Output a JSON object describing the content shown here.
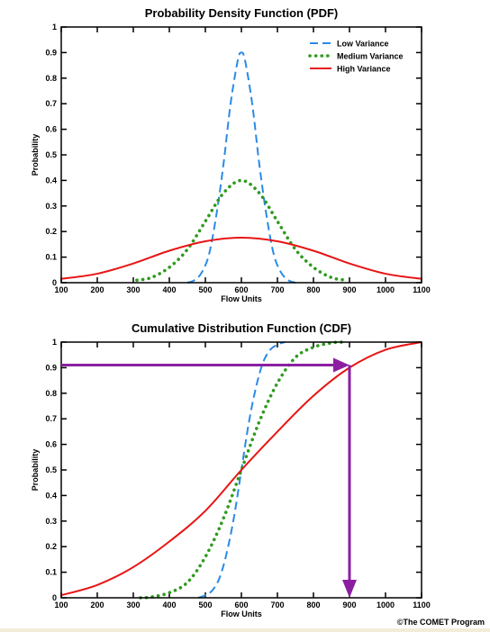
{
  "credit": "©The COMET Program",
  "colors": {
    "low": "#2a8ae8",
    "medium": "#2f9a1f",
    "high": "#e81414",
    "arrow": "#8b1fa0"
  },
  "chart_data": [
    {
      "type": "line",
      "title": "Probability Density Function (PDF)",
      "xlabel": "Flow Units",
      "ylabel": "Probability",
      "xlim": [
        100,
        1100
      ],
      "ylim": [
        0,
        1
      ],
      "xticks": [
        "100",
        "200",
        "300",
        "400",
        "500",
        "600",
        "700",
        "800",
        "900",
        "1000",
        "1100"
      ],
      "yticks": [
        "0",
        "0.1",
        "0.2",
        "0.3",
        "0.4",
        "0.5",
        "0.6",
        "0.7",
        "0.8",
        "0.9",
        "1"
      ],
      "legend": "top-right",
      "series": [
        {
          "name": "Low Variance",
          "style": "dashed",
          "color": "#2a8ae8",
          "x": [
            450,
            470,
            490,
            510,
            530,
            550,
            570,
            590,
            600,
            610,
            630,
            650,
            670,
            690,
            710,
            730,
            750
          ],
          "y": [
            0,
            0.01,
            0.04,
            0.11,
            0.26,
            0.46,
            0.7,
            0.87,
            0.9,
            0.87,
            0.7,
            0.46,
            0.26,
            0.11,
            0.04,
            0.01,
            0
          ]
        },
        {
          "name": "Medium Variance",
          "style": "dotted",
          "color": "#2f9a1f",
          "x": [
            310,
            350,
            400,
            450,
            500,
            550,
            600,
            650,
            700,
            750,
            800,
            850,
            890
          ],
          "y": [
            0.01,
            0.02,
            0.06,
            0.13,
            0.24,
            0.35,
            0.4,
            0.35,
            0.24,
            0.13,
            0.06,
            0.02,
            0.01
          ]
        },
        {
          "name": "High Variance",
          "style": "solid",
          "color": "#e81414",
          "x": [
            100,
            200,
            300,
            400,
            500,
            600,
            700,
            800,
            900,
            1000,
            1100
          ],
          "y": [
            0.015,
            0.035,
            0.075,
            0.125,
            0.162,
            0.176,
            0.162,
            0.125,
            0.075,
            0.035,
            0.015
          ]
        }
      ]
    },
    {
      "type": "line",
      "title": "Cumulative Distribution Function (CDF)",
      "xlabel": "Flow Units",
      "ylabel": "Probability",
      "xlim": [
        100,
        1100
      ],
      "ylim": [
        0,
        1
      ],
      "xticks": [
        "100",
        "200",
        "300",
        "400",
        "500",
        "600",
        "700",
        "800",
        "900",
        "1000",
        "1100"
      ],
      "yticks": [
        "0",
        "0.1",
        "0.2",
        "0.3",
        "0.4",
        "0.5",
        "0.6",
        "0.7",
        "0.8",
        "0.9",
        "1"
      ],
      "series": [
        {
          "name": "Low Variance",
          "style": "dashed",
          "color": "#2a8ae8",
          "x": [
            480,
            500,
            520,
            540,
            560,
            580,
            600,
            620,
            640,
            660,
            680,
            700,
            720
          ],
          "y": [
            0,
            0.01,
            0.03,
            0.08,
            0.18,
            0.32,
            0.5,
            0.68,
            0.82,
            0.92,
            0.97,
            0.99,
            1.0
          ]
        },
        {
          "name": "Medium Variance",
          "style": "dotted",
          "color": "#2f9a1f",
          "x": [
            320,
            350,
            400,
            450,
            500,
            550,
            600,
            650,
            700,
            750,
            800,
            850,
            880
          ],
          "y": [
            0,
            0.003,
            0.02,
            0.06,
            0.16,
            0.31,
            0.5,
            0.69,
            0.84,
            0.94,
            0.98,
            0.997,
            1.0
          ]
        },
        {
          "name": "High Variance",
          "style": "solid",
          "color": "#e81414",
          "x": [
            100,
            200,
            300,
            400,
            500,
            600,
            700,
            800,
            900,
            1000,
            1100
          ],
          "y": [
            0.01,
            0.05,
            0.12,
            0.22,
            0.34,
            0.5,
            0.65,
            0.79,
            0.9,
            0.97,
            1.0
          ]
        }
      ],
      "annotation": {
        "type": "lookup-arrows",
        "probability": 0.91,
        "flow": 900,
        "color": "#8b1fa0"
      }
    }
  ]
}
